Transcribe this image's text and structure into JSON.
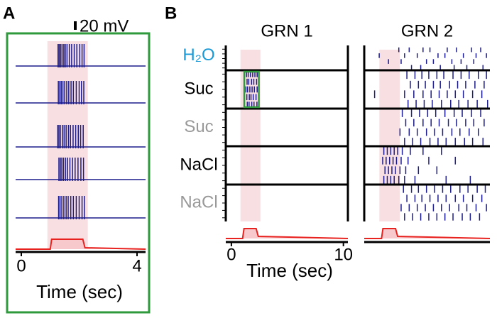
{
  "panel_a": {
    "label": "A",
    "scale_bar": "20 mV",
    "xlim": [
      0,
      4
    ],
    "xticks": [
      0,
      4
    ],
    "xlabel": "Time (sec)",
    "stimulus": [
      1,
      2.2
    ],
    "traces": [
      [
        1.27,
        1.31,
        1.36,
        1.41,
        1.47,
        1.52,
        1.58,
        1.66,
        1.74,
        1.83,
        1.92,
        2.02,
        2.1,
        2.17
      ],
      [
        1.28,
        1.33,
        1.38,
        1.44,
        1.5,
        1.57,
        1.64,
        1.72,
        1.8,
        1.9,
        2.0,
        2.08,
        2.16
      ],
      [
        1.26,
        1.3,
        1.35,
        1.42,
        1.48,
        1.55,
        1.63,
        1.7,
        1.79,
        1.88,
        1.97,
        2.05,
        2.14
      ],
      [
        1.3,
        1.35,
        1.4,
        1.46,
        1.53,
        1.6,
        1.68,
        1.77,
        1.86,
        1.96,
        2.06,
        2.15
      ],
      [
        1.29,
        1.34,
        1.4,
        1.47,
        1.55,
        1.62,
        1.71,
        1.8,
        1.9,
        2.0,
        2.1,
        2.18
      ]
    ]
  },
  "panel_b": {
    "label": "B",
    "xlim": [
      -0.5,
      10.4
    ],
    "xticks": [
      0,
      10
    ],
    "xlabel": "Time (sec)",
    "stimulus": [
      1,
      2.4
    ],
    "conditions": [
      {
        "label": "H₂O",
        "color": "#1a9ad6"
      },
      {
        "label": "Suc",
        "color": "#000000"
      },
      {
        "label": "Suc",
        "color": "#999999"
      },
      {
        "label": "NaCl",
        "color": "#000000"
      },
      {
        "label": "NaCl",
        "color": "#999999"
      }
    ],
    "neurons": [
      {
        "title": "GRN 1",
        "rasters": [
          [],
          [
            [
              1.35,
              1.5,
              1.7,
              1.9,
              2.1,
              2.3
            ],
            [
              1.4,
              1.55,
              1.8,
              2.0,
              2.25
            ],
            [
              1.3,
              1.45,
              1.65,
              1.85,
              2.05,
              2.3
            ],
            [
              1.38,
              1.6,
              1.75,
              1.95,
              2.2
            ],
            [
              1.42,
              1.58,
              1.82,
              2.02,
              2.28
            ]
          ],
          [],
          [],
          []
        ]
      },
      {
        "title": "GRN 2",
        "rasters": [
          [
            [
              2.5,
              3.4,
              4.6,
              5.2,
              6.7,
              7.5,
              8.8,
              9.6
            ],
            [
              0.8,
              3.0,
              4.1,
              5.9,
              6.5,
              8.1,
              9.2,
              10.1
            ],
            [
              1.6,
              2.7,
              4.9,
              5.5,
              7.1,
              7.9,
              9.0
            ],
            [
              3.6,
              4.4,
              6.1,
              7.3,
              8.4,
              9.8
            ]
          ],
          [
            [
              3.2,
              3.9,
              4.5,
              5.1,
              5.8,
              6.4,
              7.2,
              7.9,
              8.6,
              9.4,
              10.1
            ],
            [
              3.5,
              4.2,
              4.8,
              5.5,
              6.1,
              6.9,
              7.6,
              8.3,
              9.1,
              9.9
            ],
            [
              0.4,
              3.0,
              3.8,
              4.6,
              5.3,
              6.0,
              6.7,
              7.4,
              8.1,
              8.9,
              9.7
            ],
            [
              3.3,
              4.0,
              4.7,
              5.4,
              6.2,
              7.0,
              7.7,
              8.5,
              9.3,
              10.2
            ]
          ],
          [
            [
              2.8,
              3.6,
              4.3,
              5.0,
              5.7,
              6.5,
              7.3,
              8.0,
              8.8,
              9.6
            ],
            [
              3.1,
              3.8,
              4.6,
              5.3,
              6.0,
              6.8,
              7.5,
              8.3,
              9.0,
              9.9
            ],
            [
              2.6,
              3.4,
              4.1,
              4.9,
              5.6,
              6.3,
              7.1,
              7.8,
              8.6,
              9.4
            ],
            [
              3.0,
              3.7,
              4.4,
              5.2,
              5.9,
              6.6,
              7.4,
              8.2,
              8.9,
              9.8
            ]
          ],
          [
            [
              1.2,
              1.5,
              1.8,
              2.1,
              2.4,
              2.8,
              3.5,
              4.6,
              6.2
            ],
            [
              1.1,
              1.4,
              1.7,
              2.0,
              2.3,
              2.7,
              3.3,
              5.1,
              7.4
            ],
            [
              1.3,
              1.6,
              1.9,
              2.2,
              2.6,
              3.1,
              4.2,
              5.8
            ],
            [
              1.2,
              1.5,
              1.8,
              2.1,
              2.5,
              3.0,
              3.9,
              6.6,
              8.7
            ]
          ],
          [
            [
              2.9,
              3.6,
              4.2,
              4.9,
              5.6,
              6.3,
              7.0,
              7.8,
              8.5,
              9.3,
              10.0
            ],
            [
              3.2,
              3.9,
              4.5,
              5.2,
              5.9,
              6.6,
              7.4,
              8.1,
              8.9,
              9.7
            ],
            [
              2.7,
              3.4,
              4.1,
              4.8,
              5.5,
              6.2,
              6.9,
              7.7,
              8.4,
              9.2,
              10.1
            ],
            [
              3.0,
              3.7,
              4.4,
              5.1,
              5.8,
              6.5,
              7.2,
              8.0,
              8.7,
              9.5
            ]
          ]
        ]
      }
    ]
  }
}
